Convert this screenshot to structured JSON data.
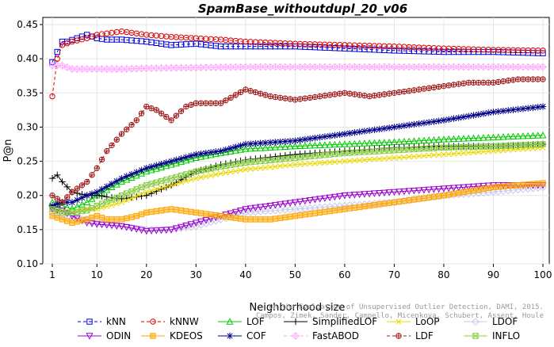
{
  "chart_data": {
    "type": "line",
    "title": "SpamBase_withoutdupl_20_v06",
    "xlabel": "Neighborhood size",
    "ylabel": "P@n",
    "xlim": [
      1,
      100
    ],
    "ylim": [
      0.1,
      0.45
    ],
    "xticks": [
      1,
      10,
      20,
      30,
      40,
      50,
      60,
      70,
      80,
      90,
      100
    ],
    "yticks": [
      0.1,
      0.15,
      0.2,
      0.25,
      0.3,
      0.35,
      0.4,
      0.45
    ],
    "ytick_labels": [
      "0.10",
      "0.15",
      "0.20",
      "0.25",
      "0.30",
      "0.35",
      "0.40",
      "0.45"
    ],
    "grid": true,
    "legend_position": "bottom",
    "credit": "Campos, Zimek, Sander, Campello, Micenkova, Schubert, Assent, Houle",
    "credit_line1": "On the Evaluation of Unsupervised Outlier Detection, DAMI, 2015.",
    "series": [
      {
        "name": "kNN",
        "color": "#0000dd",
        "marker": "square",
        "dash": "4,3",
        "points": [
          [
            1,
            0.395
          ],
          [
            2,
            0.41
          ],
          [
            3,
            0.425
          ],
          [
            4,
            0.425
          ],
          [
            6,
            0.43
          ],
          [
            8,
            0.435
          ],
          [
            10,
            0.43
          ],
          [
            12,
            0.428
          ],
          [
            15,
            0.428
          ],
          [
            20,
            0.425
          ],
          [
            25,
            0.42
          ],
          [
            30,
            0.422
          ],
          [
            35,
            0.418
          ],
          [
            40,
            0.418
          ],
          [
            50,
            0.418
          ],
          [
            60,
            0.415
          ],
          [
            70,
            0.412
          ],
          [
            80,
            0.41
          ],
          [
            90,
            0.41
          ],
          [
            100,
            0.408
          ]
        ]
      },
      {
        "name": "kNNW",
        "color": "#dd0000",
        "marker": "circle",
        "dash": "4,3",
        "points": [
          [
            1,
            0.345
          ],
          [
            2,
            0.4
          ],
          [
            3,
            0.42
          ],
          [
            5,
            0.425
          ],
          [
            8,
            0.43
          ],
          [
            10,
            0.435
          ],
          [
            13,
            0.438
          ],
          [
            15,
            0.44
          ],
          [
            20,
            0.435
          ],
          [
            25,
            0.432
          ],
          [
            30,
            0.43
          ],
          [
            35,
            0.428
          ],
          [
            40,
            0.425
          ],
          [
            50,
            0.422
          ],
          [
            60,
            0.42
          ],
          [
            70,
            0.418
          ],
          [
            80,
            0.415
          ],
          [
            90,
            0.413
          ],
          [
            100,
            0.412
          ]
        ]
      },
      {
        "name": "LOF",
        "color": "#00cc00",
        "marker": "triangle-up",
        "dash": "",
        "points": [
          [
            1,
            0.19
          ],
          [
            3,
            0.185
          ],
          [
            5,
            0.18
          ],
          [
            8,
            0.19
          ],
          [
            10,
            0.2
          ],
          [
            15,
            0.22
          ],
          [
            20,
            0.235
          ],
          [
            25,
            0.245
          ],
          [
            30,
            0.255
          ],
          [
            35,
            0.262
          ],
          [
            40,
            0.268
          ],
          [
            50,
            0.272
          ],
          [
            60,
            0.275
          ],
          [
            70,
            0.278
          ],
          [
            80,
            0.282
          ],
          [
            90,
            0.285
          ],
          [
            100,
            0.288
          ]
        ]
      },
      {
        "name": "SimplifiedLOF",
        "color": "#000000",
        "marker": "plus",
        "dash": "",
        "points": [
          [
            1,
            0.225
          ],
          [
            2,
            0.23
          ],
          [
            3,
            0.22
          ],
          [
            5,
            0.205
          ],
          [
            8,
            0.2
          ],
          [
            10,
            0.2
          ],
          [
            15,
            0.195
          ],
          [
            20,
            0.2
          ],
          [
            25,
            0.215
          ],
          [
            30,
            0.235
          ],
          [
            35,
            0.245
          ],
          [
            40,
            0.252
          ],
          [
            50,
            0.26
          ],
          [
            60,
            0.265
          ],
          [
            70,
            0.27
          ],
          [
            80,
            0.272
          ],
          [
            90,
            0.272
          ],
          [
            100,
            0.275
          ]
        ]
      },
      {
        "name": "LoOP",
        "color": "#e8d800",
        "marker": "x",
        "dash": "",
        "points": [
          [
            1,
            0.18
          ],
          [
            3,
            0.178
          ],
          [
            5,
            0.175
          ],
          [
            8,
            0.18
          ],
          [
            10,
            0.18
          ],
          [
            15,
            0.19
          ],
          [
            20,
            0.205
          ],
          [
            25,
            0.215
          ],
          [
            30,
            0.225
          ],
          [
            35,
            0.232
          ],
          [
            40,
            0.238
          ],
          [
            50,
            0.245
          ],
          [
            60,
            0.25
          ],
          [
            70,
            0.255
          ],
          [
            80,
            0.26
          ],
          [
            90,
            0.265
          ],
          [
            100,
            0.27
          ]
        ]
      },
      {
        "name": "LDOF",
        "color": "#c8c8ee",
        "marker": "diamond",
        "dash": "",
        "points": [
          [
            1,
            0.175
          ],
          [
            3,
            0.17
          ],
          [
            5,
            0.165
          ],
          [
            8,
            0.165
          ],
          [
            10,
            0.16
          ],
          [
            15,
            0.155
          ],
          [
            20,
            0.15
          ],
          [
            25,
            0.15
          ],
          [
            30,
            0.155
          ],
          [
            35,
            0.165
          ],
          [
            40,
            0.175
          ],
          [
            50,
            0.18
          ],
          [
            60,
            0.185
          ],
          [
            70,
            0.19
          ],
          [
            80,
            0.2
          ],
          [
            90,
            0.205
          ],
          [
            100,
            0.212
          ]
        ]
      },
      {
        "name": "ODIN",
        "color": "#9900cc",
        "marker": "triangle-down",
        "dash": "",
        "points": [
          [
            1,
            0.18
          ],
          [
            3,
            0.178
          ],
          [
            5,
            0.17
          ],
          [
            8,
            0.16
          ],
          [
            10,
            0.158
          ],
          [
            15,
            0.155
          ],
          [
            20,
            0.148
          ],
          [
            25,
            0.15
          ],
          [
            30,
            0.16
          ],
          [
            35,
            0.17
          ],
          [
            40,
            0.18
          ],
          [
            50,
            0.19
          ],
          [
            60,
            0.2
          ],
          [
            70,
            0.205
          ],
          [
            80,
            0.21
          ],
          [
            90,
            0.215
          ],
          [
            100,
            0.215
          ]
        ]
      },
      {
        "name": "KDEOS",
        "color": "#ffa500",
        "marker": "square-filled",
        "dash": "",
        "points": [
          [
            1,
            0.17
          ],
          [
            3,
            0.165
          ],
          [
            5,
            0.16
          ],
          [
            8,
            0.165
          ],
          [
            10,
            0.17
          ],
          [
            12,
            0.165
          ],
          [
            15,
            0.165
          ],
          [
            18,
            0.17
          ],
          [
            20,
            0.175
          ],
          [
            25,
            0.18
          ],
          [
            30,
            0.175
          ],
          [
            35,
            0.17
          ],
          [
            40,
            0.165
          ],
          [
            45,
            0.165
          ],
          [
            50,
            0.17
          ],
          [
            60,
            0.18
          ],
          [
            70,
            0.19
          ],
          [
            80,
            0.2
          ],
          [
            90,
            0.212
          ],
          [
            100,
            0.218
          ]
        ]
      },
      {
        "name": "COF",
        "color": "#000088",
        "marker": "star",
        "dash": "",
        "points": [
          [
            1,
            0.185
          ],
          [
            3,
            0.19
          ],
          [
            5,
            0.19
          ],
          [
            8,
            0.2
          ],
          [
            10,
            0.205
          ],
          [
            15,
            0.225
          ],
          [
            20,
            0.24
          ],
          [
            25,
            0.25
          ],
          [
            30,
            0.26
          ],
          [
            35,
            0.265
          ],
          [
            40,
            0.275
          ],
          [
            50,
            0.28
          ],
          [
            60,
            0.29
          ],
          [
            70,
            0.3
          ],
          [
            80,
            0.31
          ],
          [
            90,
            0.322
          ],
          [
            100,
            0.33
          ]
        ]
      },
      {
        "name": "FastABOD",
        "color": "#ffaaff",
        "marker": "diamond-plus",
        "dash": "4,3",
        "points": [
          [
            1,
            0.39
          ],
          [
            3,
            0.39
          ],
          [
            5,
            0.385
          ],
          [
            10,
            0.385
          ],
          [
            15,
            0.385
          ],
          [
            20,
            0.386
          ],
          [
            30,
            0.387
          ],
          [
            40,
            0.388
          ],
          [
            50,
            0.388
          ],
          [
            60,
            0.388
          ],
          [
            70,
            0.388
          ],
          [
            80,
            0.388
          ],
          [
            90,
            0.388
          ],
          [
            100,
            0.388
          ]
        ]
      },
      {
        "name": "LDF",
        "color": "#a01818",
        "marker": "circle-plus",
        "dash": "4,3",
        "points": [
          [
            1,
            0.2
          ],
          [
            3,
            0.19
          ],
          [
            5,
            0.205
          ],
          [
            8,
            0.22
          ],
          [
            10,
            0.24
          ],
          [
            12,
            0.265
          ],
          [
            15,
            0.29
          ],
          [
            18,
            0.31
          ],
          [
            20,
            0.33
          ],
          [
            22,
            0.325
          ],
          [
            25,
            0.31
          ],
          [
            28,
            0.33
          ],
          [
            30,
            0.335
          ],
          [
            35,
            0.335
          ],
          [
            40,
            0.355
          ],
          [
            45,
            0.345
          ],
          [
            50,
            0.34
          ],
          [
            55,
            0.345
          ],
          [
            60,
            0.35
          ],
          [
            65,
            0.345
          ],
          [
            70,
            0.35
          ],
          [
            75,
            0.355
          ],
          [
            80,
            0.36
          ],
          [
            85,
            0.365
          ],
          [
            90,
            0.365
          ],
          [
            95,
            0.37
          ],
          [
            100,
            0.37
          ]
        ]
      },
      {
        "name": "INFLO",
        "color": "#88cc44",
        "marker": "square-x",
        "dash": "",
        "points": [
          [
            1,
            0.18
          ],
          [
            3,
            0.175
          ],
          [
            5,
            0.175
          ],
          [
            8,
            0.178
          ],
          [
            10,
            0.185
          ],
          [
            15,
            0.2
          ],
          [
            20,
            0.215
          ],
          [
            25,
            0.225
          ],
          [
            30,
            0.235
          ],
          [
            35,
            0.242
          ],
          [
            40,
            0.248
          ],
          [
            50,
            0.255
          ],
          [
            60,
            0.262
          ],
          [
            70,
            0.266
          ],
          [
            80,
            0.27
          ],
          [
            90,
            0.272
          ],
          [
            100,
            0.275
          ]
        ]
      }
    ],
    "legend": [
      [
        "kNN",
        "kNNW",
        "LOF",
        "SimplifiedLOF",
        "LoOP",
        "LDOF"
      ],
      [
        "ODIN",
        "KDEOS",
        "COF",
        "FastABOD",
        "LDF",
        "INFLO"
      ]
    ]
  }
}
